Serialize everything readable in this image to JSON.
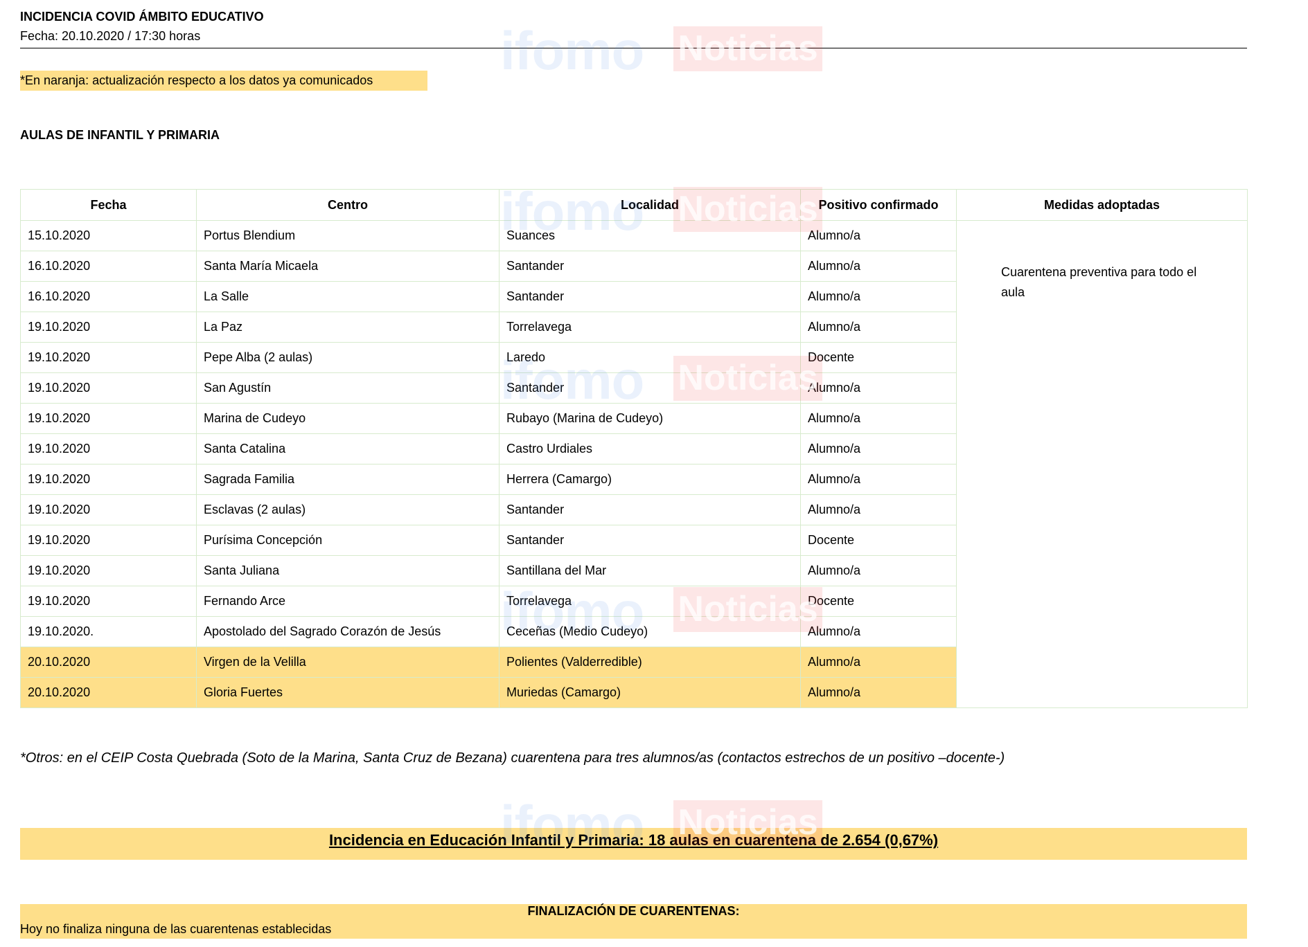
{
  "header": {
    "title": "INCIDENCIA COVID ÁMBITO EDUCATIVO",
    "date_line": "Fecha: 20.10.2020 / 17:30 horas"
  },
  "note": "*En naranja: actualización respecto a los datos ya comunicados",
  "section_title": "AULAS DE INFANTIL Y PRIMARIA",
  "table": {
    "columns": [
      "Fecha",
      "Centro",
      "Localidad",
      "Positivo confirmado",
      "Medidas adoptadas"
    ],
    "medidas": "Cuarentena preventiva para todo el aula",
    "highlight_color": "#fedf8a",
    "rows": [
      {
        "fecha": "15.10.2020",
        "centro": "Portus Blendium",
        "localidad": "Suances",
        "positivo": "Alumno/a",
        "updated": false
      },
      {
        "fecha": "16.10.2020",
        "centro": "Santa María Micaela",
        "localidad": "Santander",
        "positivo": "Alumno/a",
        "updated": false
      },
      {
        "fecha": "16.10.2020",
        "centro": "La Salle",
        "localidad": "Santander",
        "positivo": "Alumno/a",
        "updated": false
      },
      {
        "fecha": "19.10.2020",
        "centro": "La Paz",
        "localidad": "Torrelavega",
        "positivo": "Alumno/a",
        "updated": false
      },
      {
        "fecha": "19.10.2020",
        "centro": "Pepe Alba (2 aulas)",
        "localidad": "Laredo",
        "positivo": "Docente",
        "updated": false
      },
      {
        "fecha": "19.10.2020",
        "centro": "San Agustín",
        "localidad": "Santander",
        "positivo": "Alumno/a",
        "updated": false
      },
      {
        "fecha": "19.10.2020",
        "centro": "Marina de Cudeyo",
        "localidad": "Rubayo (Marina de Cudeyo)",
        "positivo": "Alumno/a",
        "updated": false
      },
      {
        "fecha": "19.10.2020",
        "centro": "Santa Catalina",
        "localidad": "Castro Urdiales",
        "positivo": "Alumno/a",
        "updated": false
      },
      {
        "fecha": "19.10.2020",
        "centro": "Sagrada Familia",
        "localidad": "Herrera (Camargo)",
        "positivo": "Alumno/a",
        "updated": false
      },
      {
        "fecha": "19.10.2020",
        "centro": "Esclavas (2 aulas)",
        "localidad": "Santander",
        "positivo": "Alumno/a",
        "updated": false
      },
      {
        "fecha": "19.10.2020",
        "centro": "Purísima Concepción",
        "localidad": "Santander",
        "positivo": "Docente",
        "updated": false
      },
      {
        "fecha": "19.10.2020",
        "centro": "Santa Juliana",
        "localidad": "Santillana del Mar",
        "positivo": "Alumno/a",
        "updated": false
      },
      {
        "fecha": "19.10.2020",
        "centro": "Fernando Arce",
        "localidad": "Torrelavega",
        "positivo": "Docente",
        "updated": false
      },
      {
        "fecha": "19.10.2020.",
        "centro": "Apostolado del Sagrado Corazón de Jesús",
        "localidad": "Ceceñas (Medio Cudeyo)",
        "positivo": "Alumno/a",
        "updated": false
      },
      {
        "fecha": "20.10.2020",
        "centro": "Virgen de la Velilla",
        "localidad": "Polientes (Valderredible)",
        "positivo": "Alumno/a",
        "updated": true
      },
      {
        "fecha": "20.10.2020",
        "centro": "Gloria Fuertes",
        "localidad": "Muriedas (Camargo)",
        "positivo": "Alumno/a",
        "updated": true
      }
    ]
  },
  "otros": "*Otros: en el CEIP Costa Quebrada (Soto de la Marina, Santa Cruz de Bezana) cuarentena para tres alumnos/as (contactos estrechos de un positivo –docente-)",
  "incidencia": "Incidencia en Educación Infantil y Primaria: 18 aulas en cuarentena de 2.654 (0,67%)",
  "finalizacion": {
    "title": "FINALIZACIÓN DE CUARENTENAS:",
    "text": "Hoy no finaliza ninguna de las cuarentenas establecidas"
  },
  "watermark": {
    "part1": "ifomo",
    "part2": "Noticias"
  }
}
